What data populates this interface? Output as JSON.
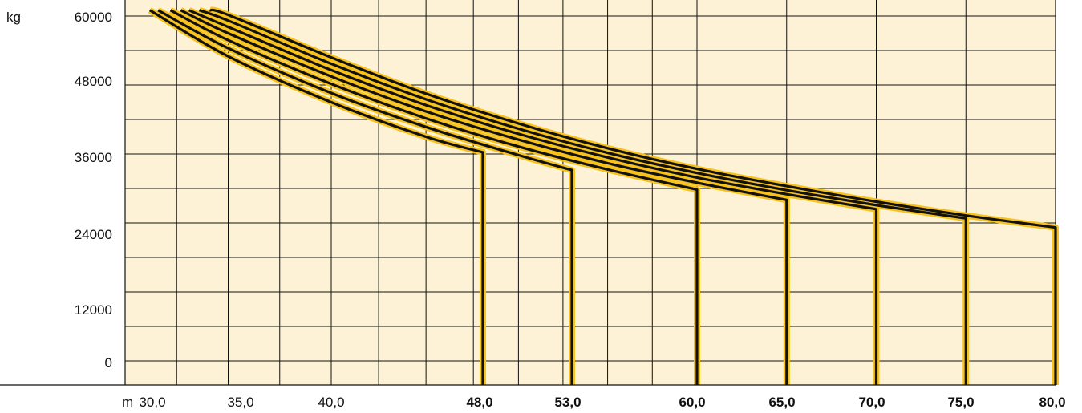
{
  "chart_data": {
    "type": "line",
    "y_unit": "kg",
    "x_unit": "m",
    "y_ticks": [
      "60000",
      "48000",
      "36000",
      "24000",
      "12000",
      "0"
    ],
    "x_ticks": [
      {
        "label": "30,0",
        "value": 30,
        "bold": false
      },
      {
        "label": "35,0",
        "value": 35,
        "bold": false
      },
      {
        "label": "40,0",
        "value": 40,
        "bold": false
      },
      {
        "label": "48,0",
        "value": 48,
        "bold": true
      },
      {
        "label": "53,0",
        "value": 53,
        "bold": true
      },
      {
        "label": "60,0",
        "value": 60,
        "bold": true
      },
      {
        "label": "65,0",
        "value": 65,
        "bold": true
      },
      {
        "label": "70,0",
        "value": 70,
        "bold": true
      },
      {
        "label": "75,0",
        "value": 75,
        "bold": true
      },
      {
        "label": "80,0",
        "value": 80,
        "bold": true
      }
    ],
    "colors": {
      "background": "#fdf2d5",
      "grid": "#111111",
      "curve": "#111111",
      "curve_outline": "#f7c21b"
    },
    "series": [
      {
        "x": [
          31.2,
          35.0,
          40.0,
          45.0,
          48.0
        ],
        "y": [
          61000,
          53000,
          45000,
          39000,
          36300
        ]
      },
      {
        "x": [
          31.6,
          35.0,
          40.0,
          45.0,
          50.0,
          53.0
        ],
        "y": [
          61000,
          54400,
          46600,
          40700,
          35800,
          33200
        ]
      },
      {
        "x": [
          32.2,
          35.0,
          40.0,
          45.0,
          50.0,
          55.0,
          60.0
        ],
        "y": [
          61000,
          55800,
          48200,
          42200,
          37300,
          33300,
          29800
        ]
      },
      {
        "x": [
          32.7,
          35.0,
          40.0,
          45.0,
          50.0,
          55.0,
          60.0,
          65.0
        ],
        "y": [
          61000,
          57000,
          49500,
          43400,
          38500,
          34400,
          31000,
          28000
        ]
      },
      {
        "x": [
          33.1,
          35.0,
          40.0,
          45.0,
          50.0,
          55.0,
          60.0,
          65.0,
          70.0
        ],
        "y": [
          61000,
          58100,
          50600,
          44500,
          39500,
          35400,
          31900,
          29000,
          26400
        ]
      },
      {
        "x": [
          33.6,
          35.0,
          40.0,
          45.0,
          50.0,
          55.0,
          60.0,
          65.0,
          70.0,
          75.0
        ],
        "y": [
          61000,
          59200,
          51700,
          45500,
          40400,
          36200,
          32700,
          29700,
          27100,
          24800
        ]
      },
      {
        "x": [
          34.1,
          35.0,
          40.0,
          45.0,
          50.0,
          55.0,
          60.0,
          65.0,
          70.0,
          75.0,
          80.0
        ],
        "y": [
          61000,
          60200,
          52800,
          46500,
          41300,
          37000,
          33400,
          30400,
          27700,
          25300,
          23200
        ]
      }
    ]
  }
}
